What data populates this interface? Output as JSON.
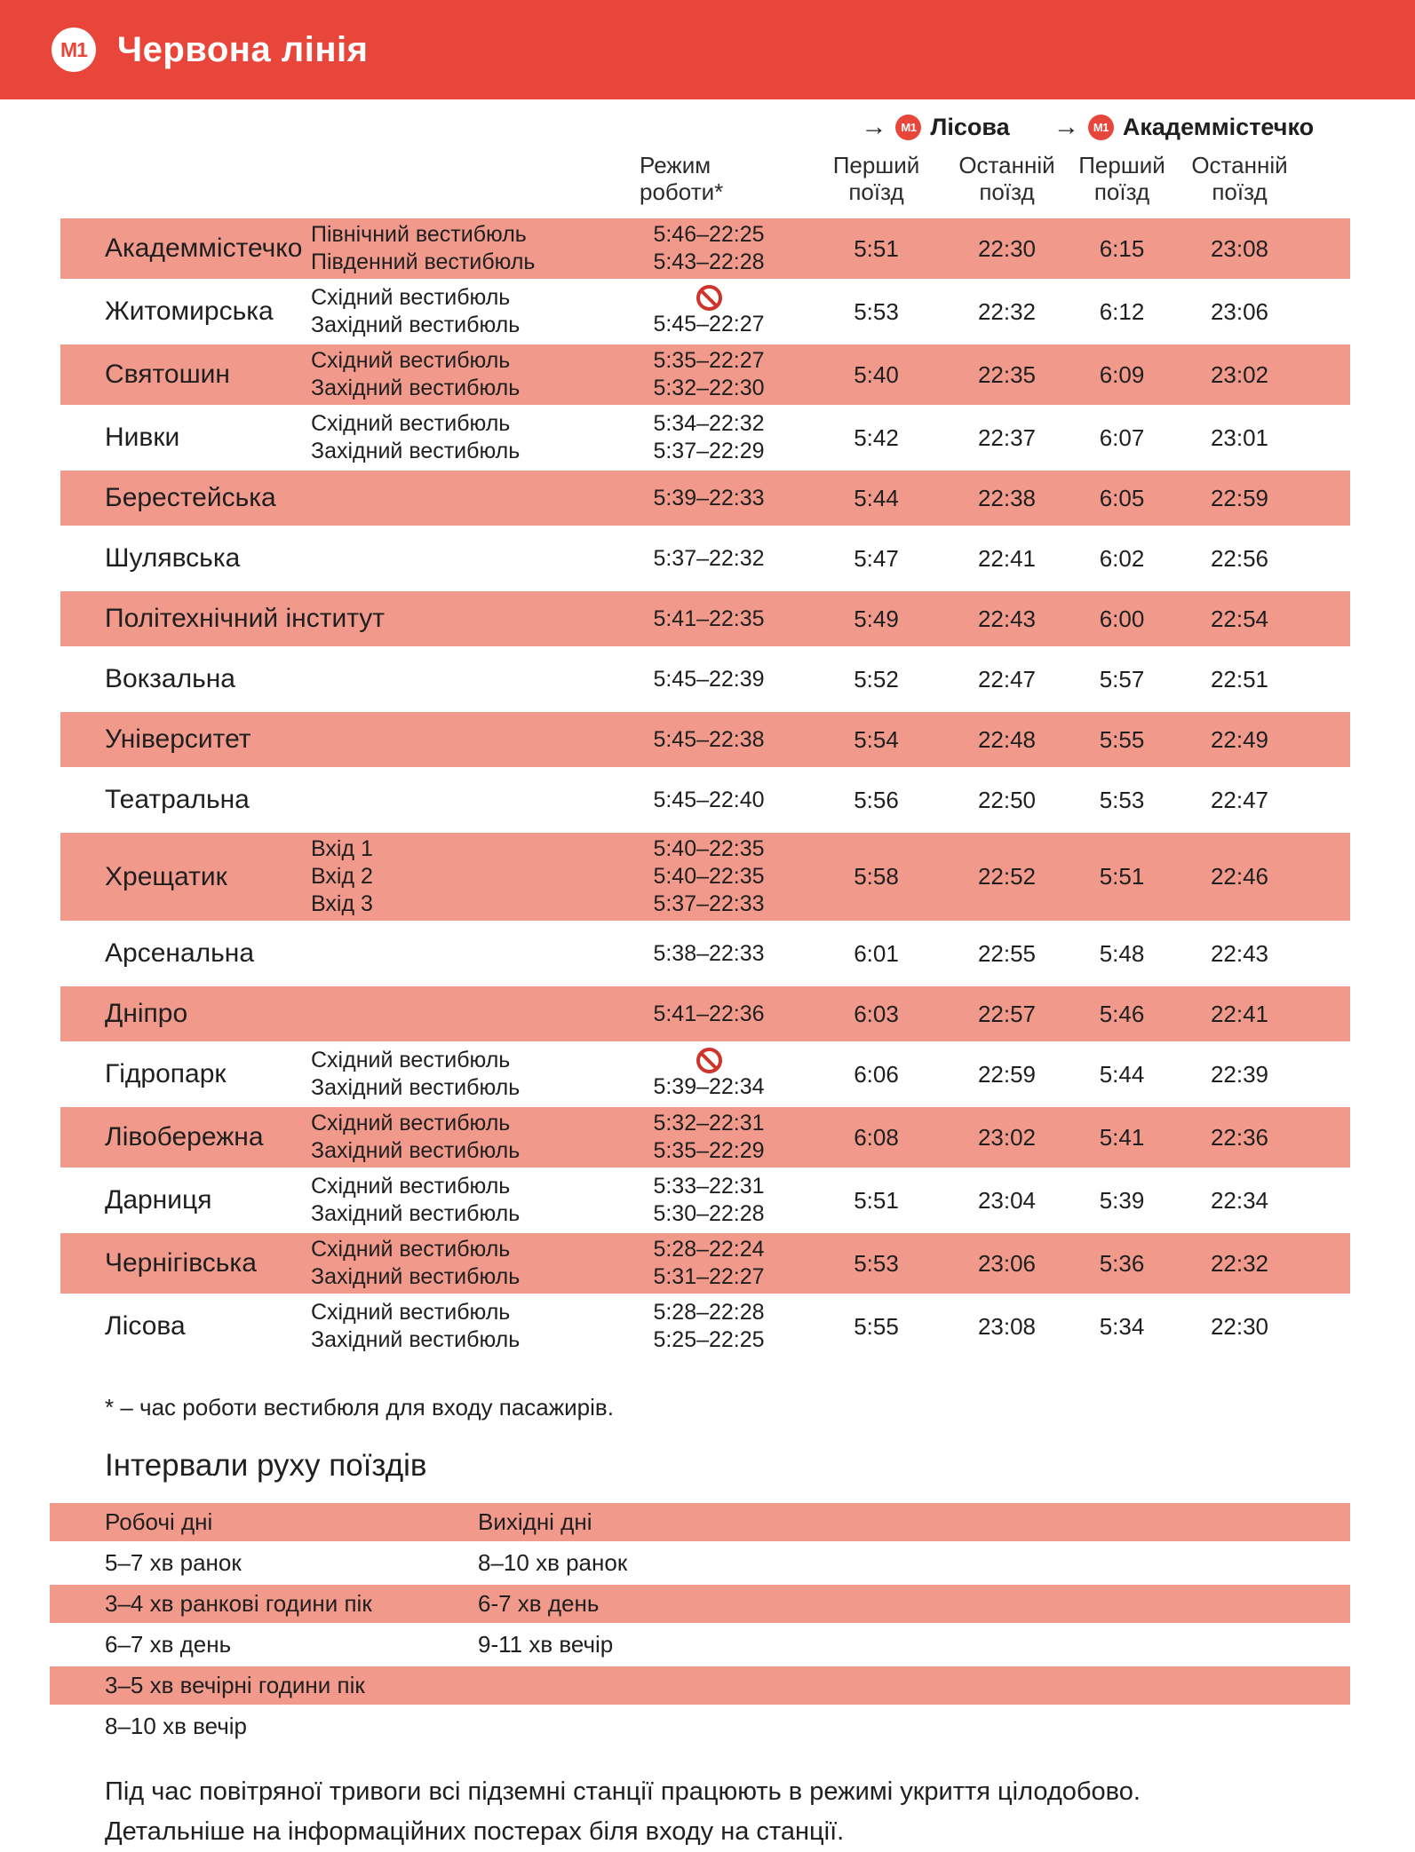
{
  "page": {
    "line_badge": "М1",
    "line_title": "Червона лінія"
  },
  "table": {
    "headers": {
      "regime": "Режим\nроботи*",
      "first": "Перший\nпоїзд",
      "last": "Останній\nпоїзд",
      "direction_a": {
        "arrow": "→",
        "badge": "М1",
        "name": "Лісова"
      },
      "direction_b": {
        "arrow": "→",
        "badge": "М1",
        "name": "Академмістечко"
      }
    },
    "stations": [
      {
        "name": "Академмістечко",
        "shaded": true,
        "entries": [
          {
            "label": "Північний вестибюль",
            "time": "5:46–22:25"
          },
          {
            "label": "Південний вестибюль",
            "time": "5:43–22:28"
          }
        ],
        "times": [
          "5:51",
          "22:30",
          "6:15",
          "23:08"
        ]
      },
      {
        "name": "Житомирська",
        "shaded": false,
        "entries": [
          {
            "label": "Східний вестибюль",
            "blocked": true
          },
          {
            "label": "Західний вестибюль",
            "time": "5:45–22:27"
          }
        ],
        "times": [
          "5:53",
          "22:32",
          "6:12",
          "23:06"
        ]
      },
      {
        "name": "Святошин",
        "shaded": true,
        "entries": [
          {
            "label": "Східний вестибюль",
            "time": "5:35–22:27"
          },
          {
            "label": "Західний вестибюль",
            "time": "5:32–22:30"
          }
        ],
        "times": [
          "5:40",
          "22:35",
          "6:09",
          "23:02"
        ]
      },
      {
        "name": "Нивки",
        "shaded": false,
        "entries": [
          {
            "label": "Східний вестибюль",
            "time": "5:34–22:32"
          },
          {
            "label": "Західний вестибюль",
            "time": "5:37–22:29"
          }
        ],
        "times": [
          "5:42",
          "22:37",
          "6:07",
          "23:01"
        ]
      },
      {
        "name": "Берестейська",
        "shaded": true,
        "entries": [
          {
            "label": "",
            "time": "5:39–22:33"
          }
        ],
        "times": [
          "5:44",
          "22:38",
          "6:05",
          "22:59"
        ]
      },
      {
        "name": "Шулявська",
        "shaded": false,
        "entries": [
          {
            "label": "",
            "time": "5:37–22:32"
          }
        ],
        "times": [
          "5:47",
          "22:41",
          "6:02",
          "22:56"
        ]
      },
      {
        "name": "Політехнічний інститут",
        "shaded": true,
        "entries": [
          {
            "label": "",
            "time": "5:41–22:35"
          }
        ],
        "times": [
          "5:49",
          "22:43",
          "6:00",
          "22:54"
        ]
      },
      {
        "name": "Вокзальна",
        "shaded": false,
        "entries": [
          {
            "label": "",
            "time": "5:45–22:39"
          }
        ],
        "times": [
          "5:52",
          "22:47",
          "5:57",
          "22:51"
        ]
      },
      {
        "name": "Університет",
        "shaded": true,
        "entries": [
          {
            "label": "",
            "time": "5:45–22:38"
          }
        ],
        "times": [
          "5:54",
          "22:48",
          "5:55",
          "22:49"
        ]
      },
      {
        "name": "Театральна",
        "shaded": false,
        "entries": [
          {
            "label": "",
            "time": "5:45–22:40"
          }
        ],
        "times": [
          "5:56",
          "22:50",
          "5:53",
          "22:47"
        ]
      },
      {
        "name": "Хрещатик",
        "shaded": true,
        "entries": [
          {
            "label": "Вхід 1",
            "time": "5:40–22:35"
          },
          {
            "label": "Вхід 2",
            "time": "5:40–22:35"
          },
          {
            "label": "Вхід 3",
            "time": "5:37–22:33"
          }
        ],
        "times": [
          "5:58",
          "22:52",
          "5:51",
          "22:46"
        ]
      },
      {
        "name": "Арсенальна",
        "shaded": false,
        "entries": [
          {
            "label": "",
            "time": "5:38–22:33"
          }
        ],
        "times": [
          "6:01",
          "22:55",
          "5:48",
          "22:43"
        ]
      },
      {
        "name": "Дніпро",
        "shaded": true,
        "entries": [
          {
            "label": "",
            "time": "5:41–22:36"
          }
        ],
        "times": [
          "6:03",
          "22:57",
          "5:46",
          "22:41"
        ]
      },
      {
        "name": "Гідропарк",
        "shaded": false,
        "entries": [
          {
            "label": "Східний вестибюль",
            "blocked": true
          },
          {
            "label": "Західний вестибюль",
            "time": "5:39–22:34"
          }
        ],
        "times": [
          "6:06",
          "22:59",
          "5:44",
          "22:39"
        ]
      },
      {
        "name": "Лівобережна",
        "shaded": true,
        "entries": [
          {
            "label": "Східний вестибюль",
            "time": "5:32–22:31"
          },
          {
            "label": "Західний вестибюль",
            "time": "5:35–22:29"
          }
        ],
        "times": [
          "6:08",
          "23:02",
          "5:41",
          "22:36"
        ]
      },
      {
        "name": "Дарниця",
        "shaded": false,
        "entries": [
          {
            "label": "Східний вестибюль",
            "time": "5:33–22:31"
          },
          {
            "label": "Західний вестибюль",
            "time": "5:30–22:28"
          }
        ],
        "times": [
          "5:51",
          "23:04",
          "5:39",
          "22:34"
        ]
      },
      {
        "name": "Чернігівська",
        "shaded": true,
        "entries": [
          {
            "label": "Східний вестибюль",
            "time": "5:28–22:24"
          },
          {
            "label": "Західний вестибюль",
            "time": "5:31–22:27"
          }
        ],
        "times": [
          "5:53",
          "23:06",
          "5:36",
          "22:32"
        ]
      },
      {
        "name": "Лісова",
        "shaded": false,
        "entries": [
          {
            "label": "Східний вестибюль",
            "time": "5:28–22:28"
          },
          {
            "label": "Західний вестибюль",
            "time": "5:25–22:25"
          }
        ],
        "times": [
          "5:55",
          "23:08",
          "5:34",
          "22:30"
        ]
      }
    ]
  },
  "footnote": "* – час роботи вестибюля для входу пасажирів.",
  "intervals": {
    "title": "Інтервали руху поїздів",
    "rows": [
      {
        "left": "Робочі дні",
        "right": "Вихідні дні",
        "shaded": true
      },
      {
        "left": "5–7 хв ранок",
        "right": "8–10 хв ранок",
        "shaded": false
      },
      {
        "left": "3–4 хв ранкові години пік",
        "right": "6-7 хв день",
        "shaded": true
      },
      {
        "left": "6–7 хв день",
        "right": "9-11 хв вечір",
        "shaded": false
      },
      {
        "left": "3–5 хв вечірні години пік",
        "right": "",
        "shaded": true
      },
      {
        "left": "8–10 хв вечір",
        "right": "",
        "shaded": false
      }
    ]
  },
  "alert_note": "Під час повітряної тривоги всі підземні станції працюють в режимі укриття цілодобово.\nДетальніше на інформаційних постерах біля входу на станції.",
  "colors": {
    "line_red": "#e8463a",
    "row_pink": "#f19a8c",
    "no_entry_red": "#cf342b"
  }
}
